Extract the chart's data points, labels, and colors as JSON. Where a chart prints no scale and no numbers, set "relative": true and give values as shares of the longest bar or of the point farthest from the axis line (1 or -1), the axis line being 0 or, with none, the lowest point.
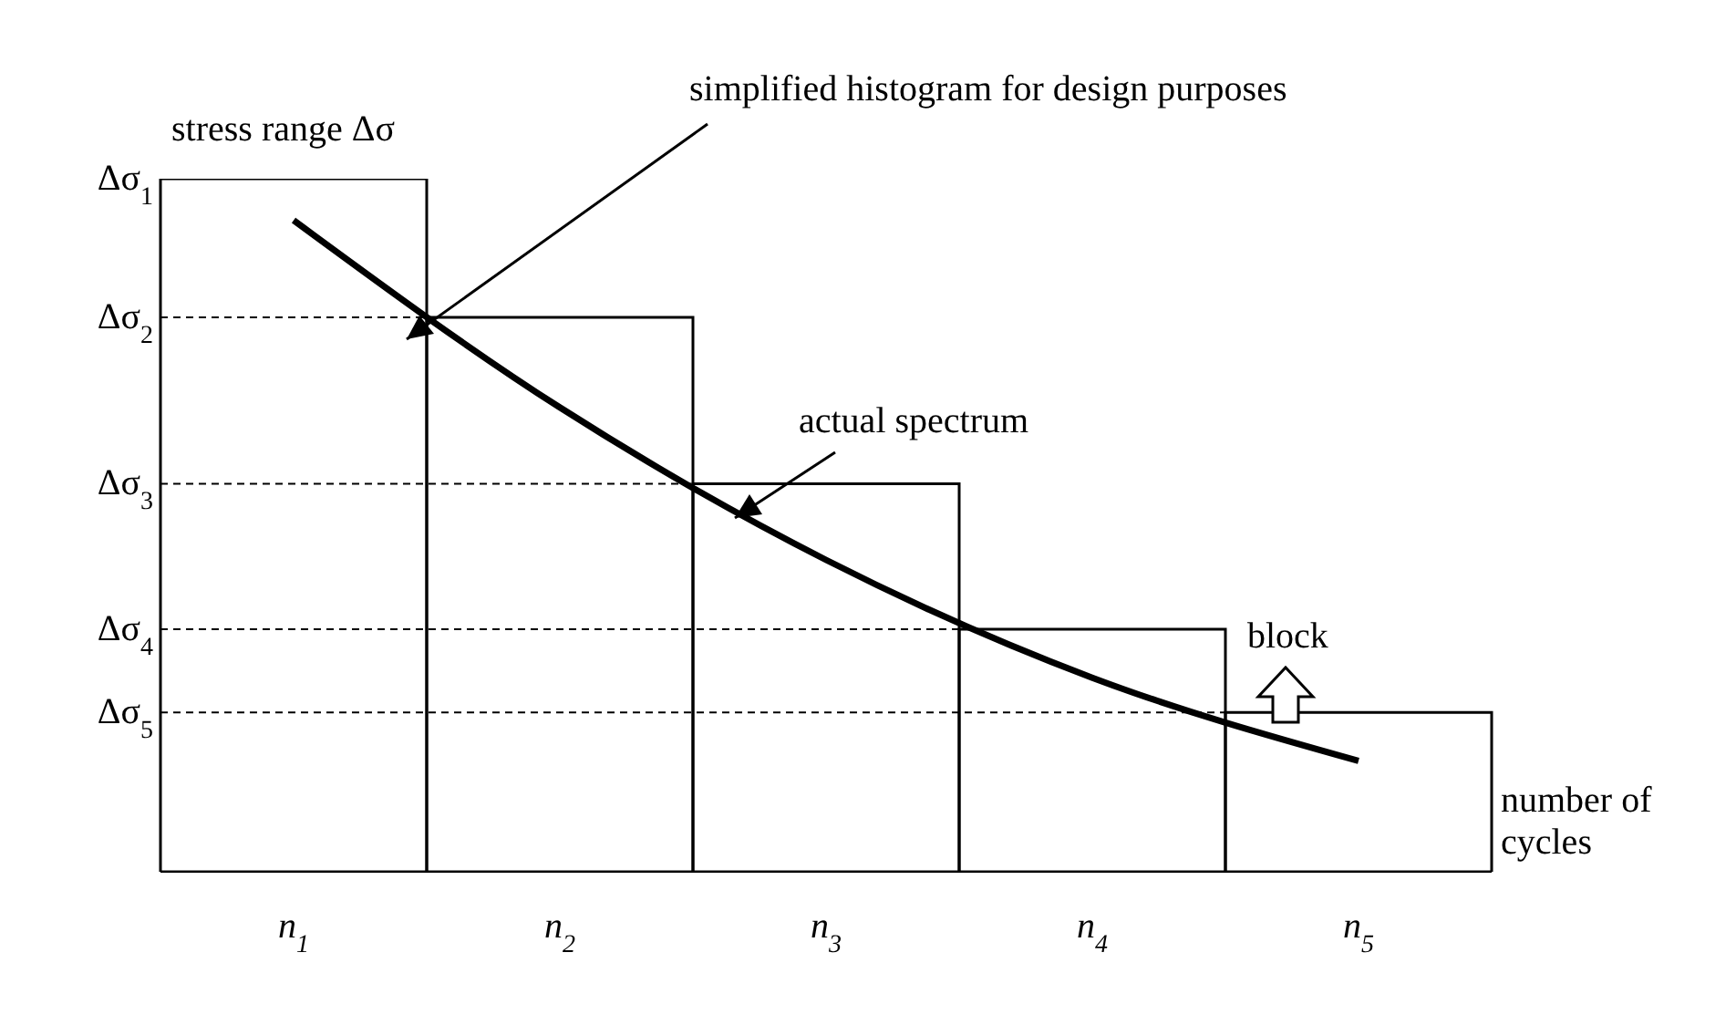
{
  "chart_data": {
    "type": "bar",
    "relative": true,
    "ylabel": "stress range Δσ",
    "xlabel": "number of cycles",
    "categories": [
      "n$_{1}$",
      "n$_{2}$",
      "n$_{3}$",
      "n$_{4}$",
      "n$_{5}$"
    ],
    "series": [
      {
        "color": "#000000",
        "values": [
          1,
          0.8,
          0.56,
          0.35,
          0.23
        ]
      },
      {
        "type": "line",
        "color": "#000000",
        "values": [
          0.94,
          0.67,
          0.45,
          0.28,
          0.16
        ]
      }
    ],
    "annotations": [
      "simplified histogram for design purposes",
      "actual spectrum",
      "block",
      "Δσ$_{1}$",
      "Δσ$_{2}$",
      "Δσ$_{3}$",
      "Δσ$_{4}$",
      "Δσ$_{5}$"
    ],
    "ref_lines": [
      {
        "axis": "y",
        "value": 0.8,
        "line_style": "dashed",
        "color": "#000000"
      },
      {
        "axis": "y",
        "value": 0.56,
        "line_style": "dashed",
        "color": "#000000"
      },
      {
        "axis": "y",
        "value": 0.35,
        "line_style": "dashed",
        "color": "#000000"
      },
      {
        "axis": "y",
        "value": 0.23,
        "line_style": "dashed",
        "color": "#000000"
      }
    ],
    "legend": false
  }
}
